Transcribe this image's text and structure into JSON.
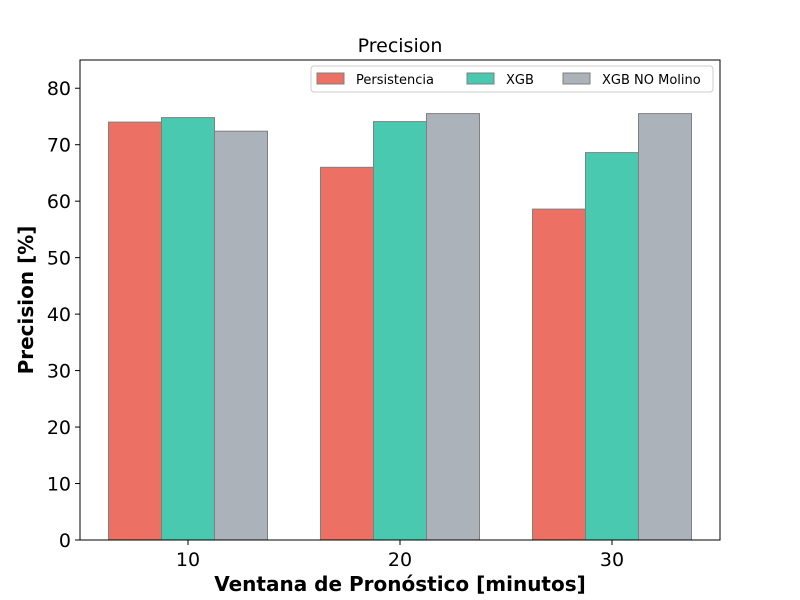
{
  "chart_data": {
    "type": "bar",
    "title": "Precision",
    "xlabel": "Ventana de Pronóstico [minutos]",
    "ylabel": "Precision [%]",
    "categories": [
      "10",
      "20",
      "30"
    ],
    "series": [
      {
        "name": "Persistencia",
        "color": "#ec7063",
        "values": [
          74.0,
          66.0,
          58.6
        ]
      },
      {
        "name": "XGB",
        "color": "#48c9b0",
        "values": [
          74.8,
          74.1,
          68.6
        ]
      },
      {
        "name": "XGB NO Molino",
        "color": "#abb2b9",
        "values": [
          72.4,
          75.5,
          75.5
        ]
      }
    ],
    "ylim": [
      0,
      85
    ],
    "yticks": [
      0,
      10,
      20,
      30,
      40,
      50,
      60,
      70,
      80
    ],
    "grid": false,
    "legend_position": "top-right",
    "legend_columns": 3
  }
}
